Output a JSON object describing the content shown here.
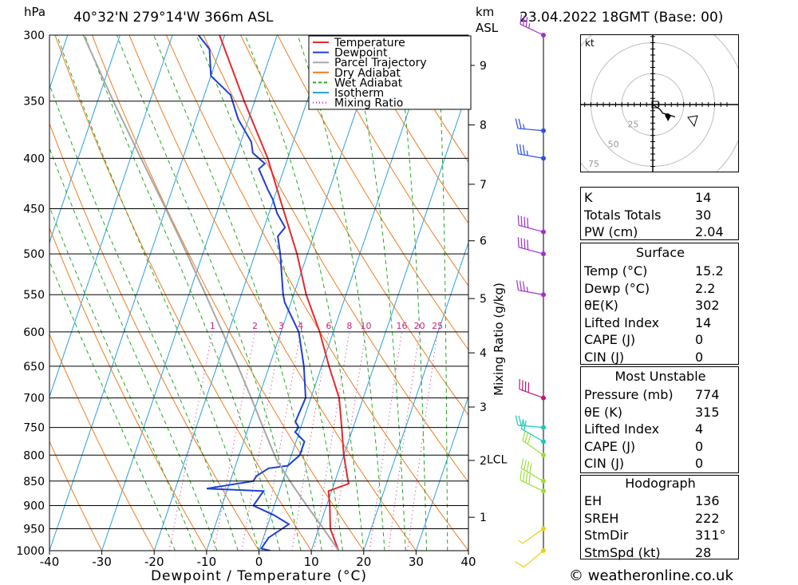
{
  "header": {
    "location": "40°32'N  279°14'W  366m  ASL",
    "datetime": "23.04.2022  18GMT  (Base: 00)",
    "unit_left": "hPa",
    "unit_right_top": "km",
    "unit_right_bottom": "ASL",
    "footer": "© weatheronline.co.uk"
  },
  "chart_data": {
    "type": "line",
    "title": "",
    "xlabel": "Dewpoint / Temperature (°C)",
    "ylabel": "hPa",
    "right_axis_label": "Mixing Ratio (g/kg)",
    "xlim": [
      -40,
      40
    ],
    "ylim": [
      1000,
      300
    ],
    "x_ticks": [
      "-40",
      "-30",
      "-20",
      "-10",
      "0",
      "10",
      "20",
      "30",
      "40"
    ],
    "pressure_levels": [
      300,
      350,
      400,
      450,
      500,
      550,
      600,
      650,
      700,
      750,
      800,
      850,
      900,
      950,
      1000
    ],
    "height_ticks_km": [
      {
        "km": 1,
        "p": 925
      },
      {
        "km": 2,
        "p": 810
      },
      {
        "km": 3,
        "p": 715
      },
      {
        "km": 4,
        "p": 630
      },
      {
        "km": 5,
        "p": 555
      },
      {
        "km": 6,
        "p": 485
      },
      {
        "km": 7,
        "p": 425
      },
      {
        "km": 8,
        "p": 370
      },
      {
        "km": 9,
        "p": 322
      }
    ],
    "lcl_label": "LCL",
    "lcl_pressure": 808,
    "mixing_ratio_labels": [
      "1",
      "2",
      "3",
      "4",
      "6",
      "8",
      "10",
      "16",
      "20",
      "25"
    ],
    "mixing_ratio_values": [
      1,
      2,
      3,
      4,
      6,
      8,
      10,
      16,
      20,
      25
    ],
    "legend_position": "top-right",
    "legend": [
      {
        "name": "Temperature",
        "color": "#e8282d",
        "style": "solid"
      },
      {
        "name": "Dewpoint",
        "color": "#1f3fd6",
        "style": "solid"
      },
      {
        "name": "Parcel Trajectory",
        "color": "#a8a8a8",
        "style": "solid"
      },
      {
        "name": "Dry Adiabat",
        "color": "#ee7d22",
        "style": "solid"
      },
      {
        "name": "Wet Adiabat",
        "color": "#22a822",
        "style": "dashed"
      },
      {
        "name": "Isotherm",
        "color": "#2aa0e0",
        "style": "solid"
      },
      {
        "name": "Mixing Ratio",
        "color": "#d0207a",
        "style": "dotted"
      }
    ],
    "series": [
      {
        "name": "Temperature",
        "color": "#e8282d",
        "points": [
          [
            1000,
            15.2
          ],
          [
            950,
            12.2
          ],
          [
            900,
            10.6
          ],
          [
            870,
            9.4
          ],
          [
            855,
            12.8
          ],
          [
            850,
            12.5
          ],
          [
            800,
            10.0
          ],
          [
            750,
            7.8
          ],
          [
            700,
            5.4
          ],
          [
            650,
            1.4
          ],
          [
            600,
            -2.6
          ],
          [
            550,
            -7.6
          ],
          [
            500,
            -12.0
          ],
          [
            450,
            -17.6
          ],
          [
            400,
            -23.8
          ],
          [
            350,
            -32.0
          ],
          [
            300,
            -41.0
          ]
        ]
      },
      {
        "name": "Dewpoint",
        "color": "#1f3fd6",
        "points": [
          [
            1000,
            2.2
          ],
          [
            995,
            0.3
          ],
          [
            970,
            1.0
          ],
          [
            940,
            4.0
          ],
          [
            920,
            0.5
          ],
          [
            900,
            -4.0
          ],
          [
            870,
            -3.0
          ],
          [
            865,
            -14.0
          ],
          [
            850,
            -5.6
          ],
          [
            840,
            -5.3
          ],
          [
            825,
            -3.5
          ],
          [
            820,
            0.0
          ],
          [
            800,
            1.6
          ],
          [
            775,
            1.6
          ],
          [
            758,
            -0.8
          ],
          [
            750,
            -0.4
          ],
          [
            740,
            -1.4
          ],
          [
            700,
            -1.0
          ],
          [
            650,
            -3.4
          ],
          [
            600,
            -6.6
          ],
          [
            560,
            -11.2
          ],
          [
            550,
            -12.0
          ],
          [
            500,
            -15.2
          ],
          [
            480,
            -16.8
          ],
          [
            470,
            -16.0
          ],
          [
            455,
            -18.4
          ],
          [
            440,
            -20.2
          ],
          [
            430,
            -21.8
          ],
          [
            410,
            -24.8
          ],
          [
            405,
            -24.0
          ],
          [
            395,
            -27.0
          ],
          [
            385,
            -28.0
          ],
          [
            365,
            -32.0
          ],
          [
            345,
            -35.0
          ],
          [
            330,
            -40.0
          ],
          [
            310,
            -42.0
          ],
          [
            300,
            -45.0
          ]
        ]
      },
      {
        "name": "Parcel Trajectory",
        "color": "#a8a8a8",
        "points": [
          [
            1000,
            15.2
          ],
          [
            950,
            10.9
          ],
          [
            900,
            6.2
          ],
          [
            850,
            1.4
          ],
          [
            808,
            -2.6
          ],
          [
            750,
            -7.2
          ],
          [
            700,
            -11.4
          ],
          [
            650,
            -16.0
          ],
          [
            600,
            -21.2
          ],
          [
            550,
            -26.8
          ],
          [
            500,
            -33.0
          ],
          [
            450,
            -40.0
          ],
          [
            400,
            -48.0
          ],
          [
            350,
            -57.0
          ],
          [
            300,
            -67.0
          ]
        ]
      }
    ],
    "wind_barbs_kt": [
      {
        "p": 1000,
        "dir": 230,
        "spd": 10
      },
      {
        "p": 950,
        "dir": 235,
        "spd": 5
      },
      {
        "p": 870,
        "dir": 295,
        "spd": 40
      },
      {
        "p": 850,
        "dir": 300,
        "spd": 40
      },
      {
        "p": 800,
        "dir": 305,
        "spd": 30
      },
      {
        "p": 775,
        "dir": 300,
        "spd": 20
      },
      {
        "p": 750,
        "dir": 275,
        "spd": 25
      },
      {
        "p": 700,
        "dir": 290,
        "spd": 40
      },
      {
        "p": 550,
        "dir": 280,
        "spd": 35
      },
      {
        "p": 500,
        "dir": 285,
        "spd": 40
      },
      {
        "p": 475,
        "dir": 285,
        "spd": 40
      },
      {
        "p": 400,
        "dir": 280,
        "spd": 35
      },
      {
        "p": 375,
        "dir": 275,
        "spd": 25
      },
      {
        "p": 300,
        "dir": 295,
        "spd": 35
      }
    ]
  },
  "hodograph": {
    "unit": "kt",
    "ring_labels": [
      "25",
      "50",
      "75"
    ],
    "points_kt": [
      [
        0,
        0
      ],
      [
        3,
        -2
      ],
      [
        6,
        -4
      ],
      [
        8,
        -7
      ],
      [
        12,
        -8
      ],
      [
        18,
        -10
      ]
    ],
    "storm_motion": {
      "dir": 311,
      "spd": 28
    }
  },
  "indices": [
    {
      "label": "K",
      "value": "14"
    },
    {
      "label": "Totals Totals",
      "value": "30"
    },
    {
      "label": "PW (cm)",
      "value": "2.04"
    }
  ],
  "surface": {
    "title": "Surface",
    "rows": [
      {
        "label": "Temp (°C)",
        "value": "15.2"
      },
      {
        "label": "Dewp (°C)",
        "value": "2.2"
      },
      {
        "label": "θE(K)",
        "value": "302"
      },
      {
        "label": "Lifted Index",
        "value": "14"
      },
      {
        "label": "CAPE (J)",
        "value": "0"
      },
      {
        "label": "CIN (J)",
        "value": "0"
      }
    ]
  },
  "most_unstable": {
    "title": "Most Unstable",
    "rows": [
      {
        "label": "Pressure (mb)",
        "value": "774"
      },
      {
        "label": "θE (K)",
        "value": "315"
      },
      {
        "label": "Lifted Index",
        "value": "4"
      },
      {
        "label": "CAPE (J)",
        "value": "0"
      },
      {
        "label": "CIN (J)",
        "value": "0"
      }
    ]
  },
  "hodograph_table": {
    "title": "Hodograph",
    "rows": [
      {
        "label": "EH",
        "value": "136"
      },
      {
        "label": "SREH",
        "value": "222"
      },
      {
        "label": "StmDir",
        "value": "311°"
      },
      {
        "label": "StmSpd (kt)",
        "value": "28"
      }
    ]
  }
}
